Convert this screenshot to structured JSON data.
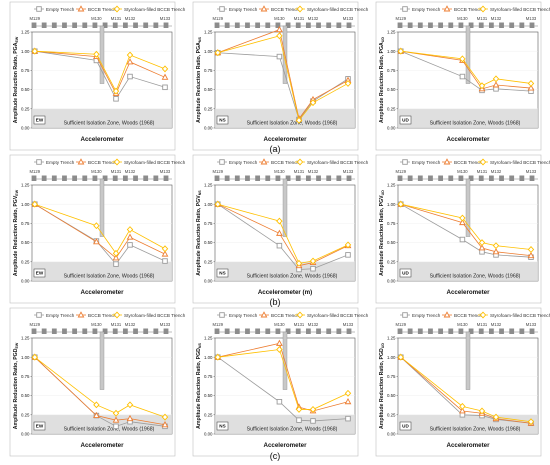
{
  "figure": {
    "legend_labels": [
      "Empty Trench",
      "BCCB Trench",
      "Styrofoam-filled BCCB Trench"
    ],
    "series_colors": [
      "#9c9c9c",
      "#ed7d31",
      "#ffc000"
    ],
    "xlabel": "Accelerometer",
    "xlabel_alt": "Accelerometer (m)",
    "zone_label": "Sufficient Isolation Zone, Woods (1968)",
    "rows": [
      {
        "label": "(a)",
        "ylabel_main": "Amplitude Reduction Ratio, ",
        "ylabel_sub": "PGA"
      },
      {
        "label": "(b)",
        "ylabel_main": "Amplitude Reduction Ratio, ",
        "ylabel_sub": "PGV"
      },
      {
        "label": "(c)",
        "ylabel_main": "Amplitude Reduction Ratio, ",
        "ylabel_sub": "PGD"
      }
    ],
    "panel_tags": [
      "EW",
      "NS",
      "UD"
    ],
    "y_ticks": [
      "0.00",
      "0.25",
      "0.50",
      "0.75",
      "1.00",
      "1.25"
    ],
    "sensor_labels": [
      "M129",
      "M130",
      "M131",
      "M132",
      "M133"
    ]
  },
  "chart_data": [
    {
      "type": "line",
      "panel": "(a) EW",
      "y_quantity": "PGA",
      "x": [
        "M129",
        "M130",
        "M131",
        "M132",
        "M133"
      ],
      "ylim": [
        0,
        1.25
      ],
      "sufficient_isolation_threshold": 0.25,
      "series": [
        {
          "name": "Empty Trench",
          "values": [
            1.0,
            0.88,
            0.38,
            0.67,
            0.53
          ]
        },
        {
          "name": "BCCB Trench",
          "values": [
            1.0,
            0.93,
            0.45,
            0.86,
            0.66
          ]
        },
        {
          "name": "Styrofoam-filled BCCB Trench",
          "values": [
            1.0,
            0.96,
            0.48,
            0.95,
            0.77
          ]
        }
      ]
    },
    {
      "type": "line",
      "panel": "(a) NS",
      "y_quantity": "PGA",
      "x": [
        "M129",
        "M130",
        "M131",
        "M132",
        "M133"
      ],
      "ylim": [
        0,
        1.25
      ],
      "sufficient_isolation_threshold": 0.25,
      "series": [
        {
          "name": "Empty Trench",
          "values": [
            0.98,
            0.93,
            0.11,
            0.35,
            0.64
          ]
        },
        {
          "name": "BCCB Trench",
          "values": [
            0.98,
            1.28,
            0.12,
            0.37,
            0.62
          ]
        },
        {
          "name": "Styrofoam-filled BCCB Trench",
          "values": [
            0.98,
            1.2,
            0.1,
            0.33,
            0.58
          ]
        }
      ]
    },
    {
      "type": "line",
      "panel": "(a) UD",
      "y_quantity": "PGA",
      "x": [
        "M129",
        "M130",
        "M131",
        "M132",
        "M133"
      ],
      "ylim": [
        0,
        1.25
      ],
      "sufficient_isolation_threshold": 0.25,
      "series": [
        {
          "name": "Empty Trench",
          "values": [
            1.0,
            0.67,
            0.49,
            0.51,
            0.48
          ]
        },
        {
          "name": "BCCB Trench",
          "values": [
            1.0,
            0.88,
            0.51,
            0.56,
            0.52
          ]
        },
        {
          "name": "Styrofoam-filled BCCB Trench",
          "values": [
            1.0,
            0.9,
            0.55,
            0.64,
            0.58
          ]
        }
      ]
    },
    {
      "type": "line",
      "panel": "(b) EW",
      "y_quantity": "PGV",
      "x": [
        "M129",
        "M130",
        "M131",
        "M132",
        "M133"
      ],
      "ylim": [
        0,
        1.25
      ],
      "sufficient_isolation_threshold": 0.25,
      "series": [
        {
          "name": "Empty Trench",
          "values": [
            1.0,
            0.52,
            0.22,
            0.47,
            0.26
          ]
        },
        {
          "name": "BCCB Trench",
          "values": [
            1.0,
            0.51,
            0.3,
            0.57,
            0.35
          ]
        },
        {
          "name": "Styrofoam-filled BCCB Trench",
          "values": [
            1.0,
            0.72,
            0.36,
            0.67,
            0.42
          ]
        }
      ]
    },
    {
      "type": "line",
      "panel": "(b) NS",
      "y_quantity": "PGV",
      "x": [
        "M129",
        "M130",
        "M131",
        "M132",
        "M133"
      ],
      "ylim": [
        0,
        1.25
      ],
      "sufficient_isolation_threshold": 0.25,
      "series": [
        {
          "name": "Empty Trench",
          "values": [
            1.0,
            0.46,
            0.15,
            0.16,
            0.34
          ]
        },
        {
          "name": "BCCB Trench",
          "values": [
            1.0,
            0.62,
            0.2,
            0.24,
            0.46
          ]
        },
        {
          "name": "Styrofoam-filled BCCB Trench",
          "values": [
            1.0,
            0.78,
            0.23,
            0.26,
            0.47
          ]
        }
      ]
    },
    {
      "type": "line",
      "panel": "(b) UD",
      "y_quantity": "PGV",
      "x": [
        "M129",
        "M130",
        "M131",
        "M132",
        "M133"
      ],
      "ylim": [
        0,
        1.25
      ],
      "sufficient_isolation_threshold": 0.25,
      "series": [
        {
          "name": "Empty Trench",
          "values": [
            1.0,
            0.54,
            0.38,
            0.34,
            0.31
          ]
        },
        {
          "name": "BCCB Trench",
          "values": [
            1.0,
            0.76,
            0.43,
            0.38,
            0.33
          ]
        },
        {
          "name": "Styrofoam-filled BCCB Trench",
          "values": [
            1.0,
            0.82,
            0.5,
            0.46,
            0.41
          ]
        }
      ]
    },
    {
      "type": "line",
      "panel": "(c) EW",
      "y_quantity": "PGD",
      "x": [
        "M129",
        "M130",
        "M131",
        "M132",
        "M133"
      ],
      "ylim": [
        0,
        1.25
      ],
      "sufficient_isolation_threshold": 0.25,
      "series": [
        {
          "name": "Empty Trench",
          "values": [
            1.0,
            0.24,
            0.1,
            0.16,
            0.1
          ]
        },
        {
          "name": "BCCB Trench",
          "values": [
            1.0,
            0.24,
            0.18,
            0.2,
            0.12
          ]
        },
        {
          "name": "Styrofoam-filled BCCB Trench",
          "values": [
            1.0,
            0.38,
            0.27,
            0.38,
            0.22
          ]
        }
      ]
    },
    {
      "type": "line",
      "panel": "(c) NS",
      "y_quantity": "PGD",
      "x": [
        "M129",
        "M130",
        "M131",
        "M132",
        "M133"
      ],
      "ylim": [
        0,
        1.25
      ],
      "sufficient_isolation_threshold": 0.25,
      "series": [
        {
          "name": "Empty Trench",
          "values": [
            1.0,
            0.42,
            0.18,
            0.17,
            0.2
          ]
        },
        {
          "name": "BCCB Trench",
          "values": [
            1.0,
            1.18,
            0.35,
            0.3,
            0.42
          ]
        },
        {
          "name": "Styrofoam-filled BCCB Trench",
          "values": [
            1.0,
            1.1,
            0.32,
            0.32,
            0.53
          ]
        }
      ]
    },
    {
      "type": "line",
      "panel": "(c) UD",
      "y_quantity": "PGD",
      "x": [
        "M129",
        "M130",
        "M131",
        "M132",
        "M133"
      ],
      "ylim": [
        0,
        1.25
      ],
      "sufficient_isolation_threshold": 0.25,
      "series": [
        {
          "name": "Empty Trench",
          "values": [
            1.0,
            0.25,
            0.24,
            0.19,
            0.14
          ]
        },
        {
          "name": "BCCB Trench",
          "values": [
            1.0,
            0.3,
            0.27,
            0.2,
            0.14
          ]
        },
        {
          "name": "Styrofoam-filled BCCB Trench",
          "values": [
            1.0,
            0.36,
            0.3,
            0.22,
            0.16
          ]
        }
      ]
    }
  ]
}
